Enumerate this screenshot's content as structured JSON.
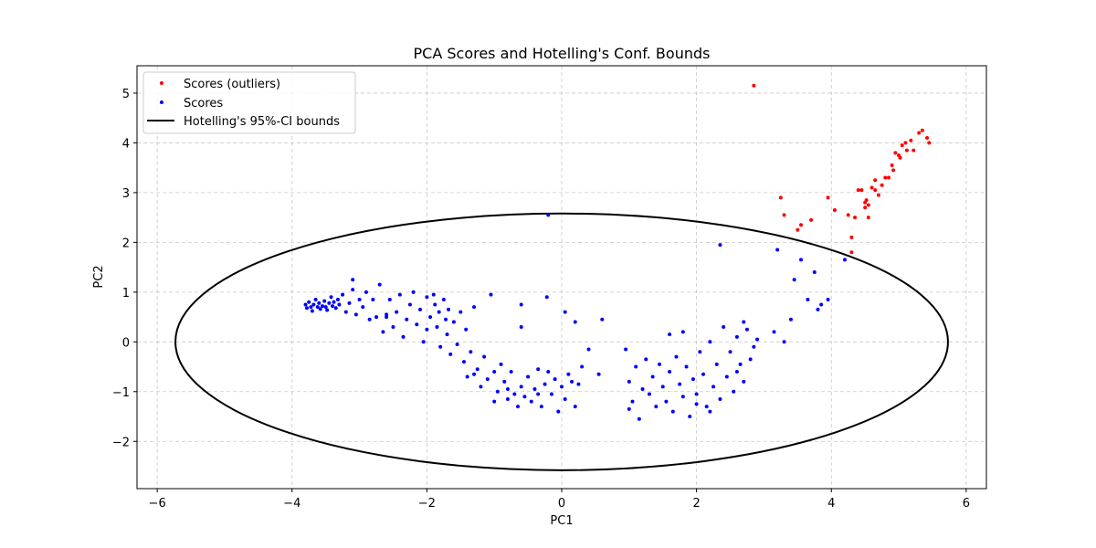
{
  "chart_data": {
    "type": "scatter",
    "title": "PCA Scores and Hotelling's Conf. Bounds",
    "xlabel": "PC1",
    "ylabel": "PC2",
    "xlim": [
      -6.3,
      6.3
    ],
    "ylim": [
      -2.95,
      5.55
    ],
    "xticks": [
      -6,
      -4,
      -2,
      0,
      2,
      4,
      6
    ],
    "yticks": [
      -2,
      -1,
      0,
      1,
      2,
      3,
      4,
      5
    ],
    "xtick_labels": [
      "−6",
      "−4",
      "−2",
      "0",
      "2",
      "4",
      "6"
    ],
    "ytick_labels": [
      "−2",
      "−1",
      "0",
      "1",
      "2",
      "3",
      "4",
      "5"
    ],
    "grid": true,
    "legend_position": "top-left",
    "colors": {
      "outliers": "#ff0000",
      "scores": "#0000ff",
      "ellipse": "#000000",
      "grid": "#b0b0b0"
    },
    "series": [
      {
        "name": "Scores (outliers)",
        "kind": "scatter",
        "color": "#ff0000",
        "points": [
          [
            2.85,
            5.15
          ],
          [
            3.25,
            2.9
          ],
          [
            3.3,
            2.55
          ],
          [
            3.5,
            2.25
          ],
          [
            3.55,
            2.35
          ],
          [
            3.7,
            2.45
          ],
          [
            3.95,
            2.9
          ],
          [
            4.05,
            2.65
          ],
          [
            4.25,
            2.55
          ],
          [
            4.3,
            2.1
          ],
          [
            4.3,
            1.8
          ],
          [
            4.35,
            2.5
          ],
          [
            4.4,
            3.05
          ],
          [
            4.45,
            3.05
          ],
          [
            4.5,
            2.8
          ],
          [
            4.5,
            2.7
          ],
          [
            4.55,
            2.75
          ],
          [
            4.55,
            2.5
          ],
          [
            4.6,
            3.1
          ],
          [
            4.65,
            3.05
          ],
          [
            4.65,
            3.25
          ],
          [
            4.7,
            2.95
          ],
          [
            4.75,
            3.15
          ],
          [
            4.8,
            3.3
          ],
          [
            4.85,
            3.3
          ],
          [
            4.9,
            3.55
          ],
          [
            4.92,
            3.45
          ],
          [
            4.95,
            3.8
          ],
          [
            5.0,
            3.75
          ],
          [
            5.02,
            3.7
          ],
          [
            5.05,
            3.95
          ],
          [
            5.1,
            4.0
          ],
          [
            5.12,
            3.85
          ],
          [
            5.18,
            4.05
          ],
          [
            5.22,
            3.85
          ],
          [
            5.3,
            4.2
          ],
          [
            5.35,
            4.25
          ],
          [
            5.42,
            4.1
          ],
          [
            5.45,
            4.0
          ],
          [
            4.52,
            2.85
          ]
        ]
      },
      {
        "name": "Scores",
        "kind": "scatter",
        "color": "#0000ff",
        "points": [
          [
            -3.8,
            0.75
          ],
          [
            -3.78,
            0.68
          ],
          [
            -3.75,
            0.8
          ],
          [
            -3.72,
            0.7
          ],
          [
            -3.7,
            0.62
          ],
          [
            -3.68,
            0.75
          ],
          [
            -3.65,
            0.85
          ],
          [
            -3.62,
            0.7
          ],
          [
            -3.6,
            0.78
          ],
          [
            -3.58,
            0.66
          ],
          [
            -3.55,
            0.72
          ],
          [
            -3.52,
            0.82
          ],
          [
            -3.5,
            0.7
          ],
          [
            -3.48,
            0.64
          ],
          [
            -3.45,
            0.78
          ],
          [
            -3.42,
            0.9
          ],
          [
            -3.4,
            0.72
          ],
          [
            -3.38,
            0.8
          ],
          [
            -3.35,
            0.68
          ],
          [
            -3.32,
            0.85
          ],
          [
            -3.3,
            0.75
          ],
          [
            -3.25,
            0.95
          ],
          [
            -3.2,
            0.6
          ],
          [
            -3.15,
            0.78
          ],
          [
            -3.1,
            1.05
          ],
          [
            -3.05,
            0.55
          ],
          [
            -3.0,
            0.85
          ],
          [
            -2.95,
            0.7
          ],
          [
            -3.1,
            1.25
          ],
          [
            -2.9,
            1.0
          ],
          [
            -2.85,
            0.45
          ],
          [
            -2.8,
            0.85
          ],
          [
            -2.75,
            0.5
          ],
          [
            -2.7,
            1.15
          ],
          [
            -2.65,
            0.2
          ],
          [
            -2.6,
            0.55
          ],
          [
            -2.55,
            0.85
          ],
          [
            -2.5,
            0.3
          ],
          [
            -2.45,
            0.6
          ],
          [
            -2.4,
            0.95
          ],
          [
            -2.35,
            0.1
          ],
          [
            -2.3,
            0.45
          ],
          [
            -2.25,
            0.75
          ],
          [
            -2.2,
            1.0
          ],
          [
            -2.15,
            0.35
          ],
          [
            -2.1,
            0.65
          ],
          [
            -2.05,
            0.0
          ],
          [
            -2.0,
            0.9
          ],
          [
            -1.95,
            0.5
          ],
          [
            -1.9,
            0.95
          ],
          [
            -1.88,
            0.75
          ],
          [
            -1.85,
            0.3
          ],
          [
            -1.82,
            0.6
          ],
          [
            -1.8,
            -0.1
          ],
          [
            -1.75,
            0.85
          ],
          [
            -1.72,
            0.45
          ],
          [
            -1.7,
            0.15
          ],
          [
            -1.68,
            0.65
          ],
          [
            -1.65,
            -0.25
          ],
          [
            -1.6,
            0.4
          ],
          [
            -1.55,
            -0.05
          ],
          [
            -1.5,
            0.6
          ],
          [
            -1.45,
            -0.4
          ],
          [
            -1.42,
            0.25
          ],
          [
            -1.4,
            -0.7
          ],
          [
            -1.35,
            -0.2
          ],
          [
            -1.3,
            0.7
          ],
          [
            -1.25,
            -0.55
          ],
          [
            -1.2,
            -0.9
          ],
          [
            -1.15,
            -0.3
          ],
          [
            -1.1,
            -0.75
          ],
          [
            -1.05,
            0.95
          ],
          [
            -1.0,
            -0.6
          ],
          [
            -0.95,
            -1.0
          ],
          [
            -0.9,
            -0.45
          ],
          [
            -0.85,
            -0.8
          ],
          [
            -0.8,
            -1.15
          ],
          [
            -0.75,
            -0.6
          ],
          [
            -0.7,
            -1.05
          ],
          [
            -0.65,
            -1.3
          ],
          [
            -0.6,
            -0.9
          ],
          [
            -0.55,
            -1.1
          ],
          [
            -0.5,
            -0.7
          ],
          [
            -0.45,
            -1.2
          ],
          [
            -0.4,
            -0.95
          ],
          [
            -0.35,
            -0.55
          ],
          [
            -0.3,
            -1.3
          ],
          [
            -0.25,
            -0.85
          ],
          [
            -0.2,
            -0.6
          ],
          [
            -0.15,
            -1.05
          ],
          [
            -0.1,
            -0.75
          ],
          [
            -0.05,
            -1.4
          ],
          [
            0.0,
            -0.9
          ],
          [
            0.05,
            -1.15
          ],
          [
            0.1,
            -0.65
          ],
          [
            0.15,
            -0.8
          ],
          [
            0.2,
            -1.3
          ],
          [
            0.25,
            -0.85
          ],
          [
            -0.2,
            2.55
          ],
          [
            -0.22,
            0.9
          ],
          [
            -0.6,
            0.75
          ],
          [
            -0.6,
            0.3
          ],
          [
            0.05,
            0.6
          ],
          [
            0.4,
            -0.15
          ],
          [
            0.3,
            -0.5
          ],
          [
            0.55,
            -0.65
          ],
          [
            0.6,
            0.45
          ],
          [
            0.95,
            -0.15
          ],
          [
            1.0,
            -0.8
          ],
          [
            1.05,
            -1.2
          ],
          [
            1.1,
            -0.5
          ],
          [
            1.15,
            -1.55
          ],
          [
            1.2,
            -0.95
          ],
          [
            1.25,
            -0.35
          ],
          [
            1.3,
            -1.05
          ],
          [
            1.35,
            -0.7
          ],
          [
            1.4,
            -1.3
          ],
          [
            1.45,
            -0.45
          ],
          [
            1.5,
            -0.9
          ],
          [
            1.55,
            -1.2
          ],
          [
            1.6,
            -0.6
          ],
          [
            1.65,
            -1.4
          ],
          [
            1.7,
            -0.3
          ],
          [
            1.75,
            -0.85
          ],
          [
            1.8,
            -1.1
          ],
          [
            1.85,
            -0.5
          ],
          [
            1.9,
            -1.5
          ],
          [
            1.95,
            -0.75
          ],
          [
            2.0,
            -1.05
          ],
          [
            2.05,
            -0.2
          ],
          [
            2.1,
            -0.65
          ],
          [
            2.15,
            -1.3
          ],
          [
            2.2,
            0.0
          ],
          [
            2.25,
            -0.9
          ],
          [
            2.3,
            -0.45
          ],
          [
            2.35,
            -1.15
          ],
          [
            2.4,
            0.3
          ],
          [
            2.45,
            -0.7
          ],
          [
            2.5,
            -0.2
          ],
          [
            2.55,
            -1.0
          ],
          [
            2.6,
            0.1
          ],
          [
            2.65,
            -0.45
          ],
          [
            2.7,
            -0.8
          ],
          [
            2.75,
            0.25
          ],
          [
            2.8,
            -0.35
          ],
          [
            2.85,
            -0.1
          ],
          [
            2.9,
            0.05
          ],
          [
            2.35,
            1.95
          ],
          [
            3.15,
            0.2
          ],
          [
            3.2,
            1.85
          ],
          [
            3.4,
            0.45
          ],
          [
            3.45,
            1.25
          ],
          [
            3.55,
            1.65
          ],
          [
            3.65,
            0.85
          ],
          [
            3.75,
            1.4
          ],
          [
            3.8,
            0.65
          ],
          [
            3.85,
            0.75
          ],
          [
            3.95,
            0.85
          ],
          [
            4.2,
            1.65
          ],
          [
            3.3,
            0.0
          ],
          [
            1.0,
            -1.35
          ],
          [
            2.0,
            -1.25
          ],
          [
            1.6,
            0.15
          ],
          [
            1.8,
            0.2
          ],
          [
            2.2,
            -1.4
          ],
          [
            2.6,
            -0.6
          ],
          [
            2.7,
            0.4
          ],
          [
            -0.8,
            -0.95
          ],
          [
            -1.0,
            -1.2
          ],
          [
            -0.35,
            -1.05
          ],
          [
            0.2,
            0.4
          ],
          [
            -2.6,
            0.5
          ],
          [
            -2.0,
            0.25
          ],
          [
            -1.3,
            -0.65
          ]
        ]
      },
      {
        "name": "Hotelling's 95%-CI bounds",
        "kind": "ellipse",
        "color": "#000000",
        "center": [
          0,
          0
        ],
        "semi_axis_x": 5.73,
        "semi_axis_y": 2.58
      }
    ]
  }
}
